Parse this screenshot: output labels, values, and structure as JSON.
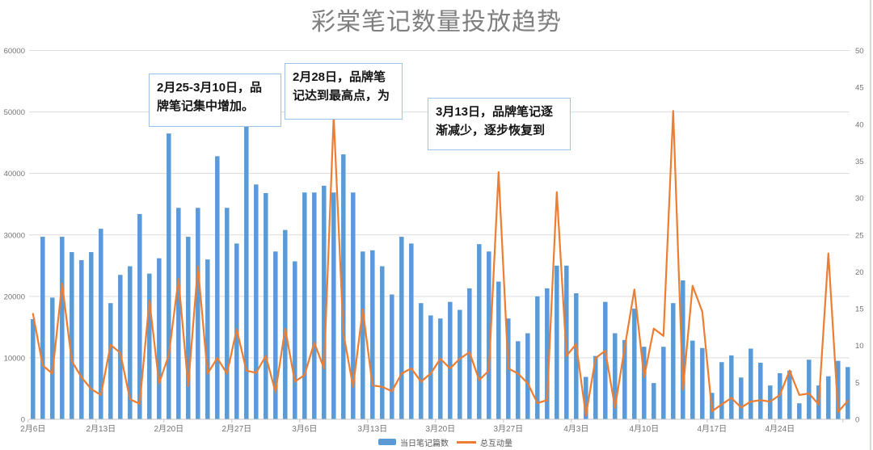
{
  "header": {
    "title": "彩棠笔记数量投放趋势"
  },
  "legend": [
    {
      "label": "当日笔记篇数",
      "color": "#5b9bd5",
      "type": "bar"
    },
    {
      "label": "总互动量",
      "color": "#ed7d31",
      "type": "line"
    }
  ],
  "annotations": [
    {
      "text": "2月25-3月10日，品牌笔记集中增加。"
    },
    {
      "text": "2月28日，品牌笔记达到最高点，为"
    },
    {
      "text": "3月13日，品牌笔记逐渐减少，逐步恢复到"
    }
  ],
  "colors": {
    "bar": "#5b9bd5",
    "line": "#ed7d31",
    "gridline": "#dcdcdc",
    "axis_label": "#737373",
    "title": "#7f7f7f",
    "annotation_border": "#9dc3e6"
  },
  "chart_data": {
    "type": "bar+line combo",
    "title": "彩棠笔记数量投放趋势",
    "grid": true,
    "legend_position": "bottom",
    "x": [
      "2月6日",
      "2月7日",
      "2月8日",
      "2月9日",
      "2月10日",
      "2月11日",
      "2月12日",
      "2月13日",
      "2月14日",
      "2月15日",
      "2月16日",
      "2月17日",
      "2月18日",
      "2月19日",
      "2月20日",
      "2月21日",
      "2月22日",
      "2月23日",
      "2月24日",
      "2月25日",
      "2月26日",
      "2月27日",
      "2月28日",
      "3月1日",
      "3月2日",
      "3月3日",
      "3月4日",
      "3月5日",
      "3月6日",
      "3月7日",
      "3月8日",
      "3月9日",
      "3月10日",
      "3月11日",
      "3月12日",
      "3月13日",
      "3月14日",
      "3月15日",
      "3月16日",
      "3月17日",
      "3月18日",
      "3月19日",
      "3月20日",
      "3月21日",
      "3月22日",
      "3月23日",
      "3月24日",
      "3月25日",
      "3月26日",
      "3月27日",
      "3月28日",
      "3月29日",
      "3月30日",
      "3月31日",
      "4月1日",
      "4月2日",
      "4月3日",
      "4月4日",
      "4月5日",
      "4月6日",
      "4月7日",
      "4月8日",
      "4月9日",
      "4月10日",
      "4月11日",
      "4月12日",
      "4月13日",
      "4月14日",
      "4月15日",
      "4月16日",
      "4月17日",
      "4月18日",
      "4月19日",
      "4月20日",
      "4月21日",
      "4月22日",
      "4月23日",
      "4月24日",
      "4月25日",
      "4月26日",
      "4月27日",
      "4月28日",
      "4月29日",
      "4月30日",
      "5月1日"
    ],
    "x_tick_labels": [
      "2月6日",
      "2月13日",
      "2月20日",
      "2月27日",
      "3月6日",
      "3月13日",
      "3月20日",
      "3月27日",
      "4月3日",
      "4月10日",
      "4月17日",
      "4月24日"
    ],
    "x_tick_days": [
      0,
      7,
      14,
      21,
      28,
      35,
      42,
      49,
      56,
      63,
      70,
      77
    ],
    "series": [
      {
        "name": "当日笔记篇数",
        "type": "bar",
        "axis": "left",
        "color": "#5b9bd5",
        "values": [
          16300,
          29700,
          19800,
          29700,
          27200,
          25900,
          27200,
          31000,
          18900,
          23500,
          24900,
          33400,
          23700,
          26200,
          46500,
          34400,
          29700,
          34400,
          26000,
          42800,
          34400,
          28600,
          47600,
          38200,
          36800,
          27300,
          30800,
          25700,
          36900,
          36900,
          38000,
          36900,
          43100,
          36900,
          27300,
          27500,
          24900,
          20300,
          29700,
          28600,
          18900,
          16900,
          16400,
          19100,
          17800,
          21300,
          28500,
          27300,
          22400,
          16400,
          12700,
          14000,
          20000,
          21300,
          25000,
          25000,
          20500,
          6900,
          10300,
          19100,
          14000,
          12900,
          18000,
          11800,
          5900,
          11800,
          18900,
          22600,
          12800,
          11600,
          4300,
          9300,
          10400,
          6800,
          11500,
          9200,
          5500,
          7500,
          7900,
          2600,
          9700,
          5500,
          7000,
          9500,
          8500
        ]
      },
      {
        "name": "总互动量",
        "type": "line",
        "axis": "right",
        "color": "#ed7d31",
        "values": [
          14.3,
          7.3,
          6.2,
          18.4,
          7.9,
          5.7,
          4.1,
          3.3,
          10.1,
          9.0,
          2.7,
          2.1,
          16.1,
          4.9,
          8.7,
          19.0,
          4.5,
          20.7,
          6.2,
          8.3,
          6.2,
          12.2,
          6.6,
          6.3,
          8.6,
          3.7,
          12.3,
          5.1,
          6.0,
          10.4,
          6.9,
          41.1,
          11.7,
          4.4,
          14.9,
          4.6,
          4.4,
          3.8,
          6.2,
          6.9,
          5.1,
          6.2,
          8.2,
          6.9,
          8.2,
          9.1,
          5.3,
          6.6,
          33.5,
          6.9,
          6.2,
          4.9,
          2.2,
          2.6,
          30.8,
          8.6,
          10.2,
          0.5,
          8.3,
          9.3,
          1.6,
          9.7,
          17.6,
          5.7,
          12.3,
          11.3,
          41.8,
          4.0,
          18.1,
          14.6,
          1.1,
          2.0,
          2.9,
          1.6,
          2.4,
          2.6,
          2.4,
          3.3,
          6.6,
          3.3,
          3.5,
          2.0,
          22.5,
          1.0,
          2.5
        ]
      }
    ],
    "left_axis": {
      "min": 0,
      "max": 60000,
      "step": 10000,
      "ticks": [
        "0",
        "10000",
        "20000",
        "30000",
        "40000",
        "50000",
        "60000"
      ]
    },
    "right_axis": {
      "min": 0,
      "max": 50,
      "step": 5,
      "ticks": [
        "0",
        "5",
        "10",
        "15",
        "20",
        "25",
        "30",
        "35",
        "40",
        "45",
        "50"
      ]
    }
  }
}
